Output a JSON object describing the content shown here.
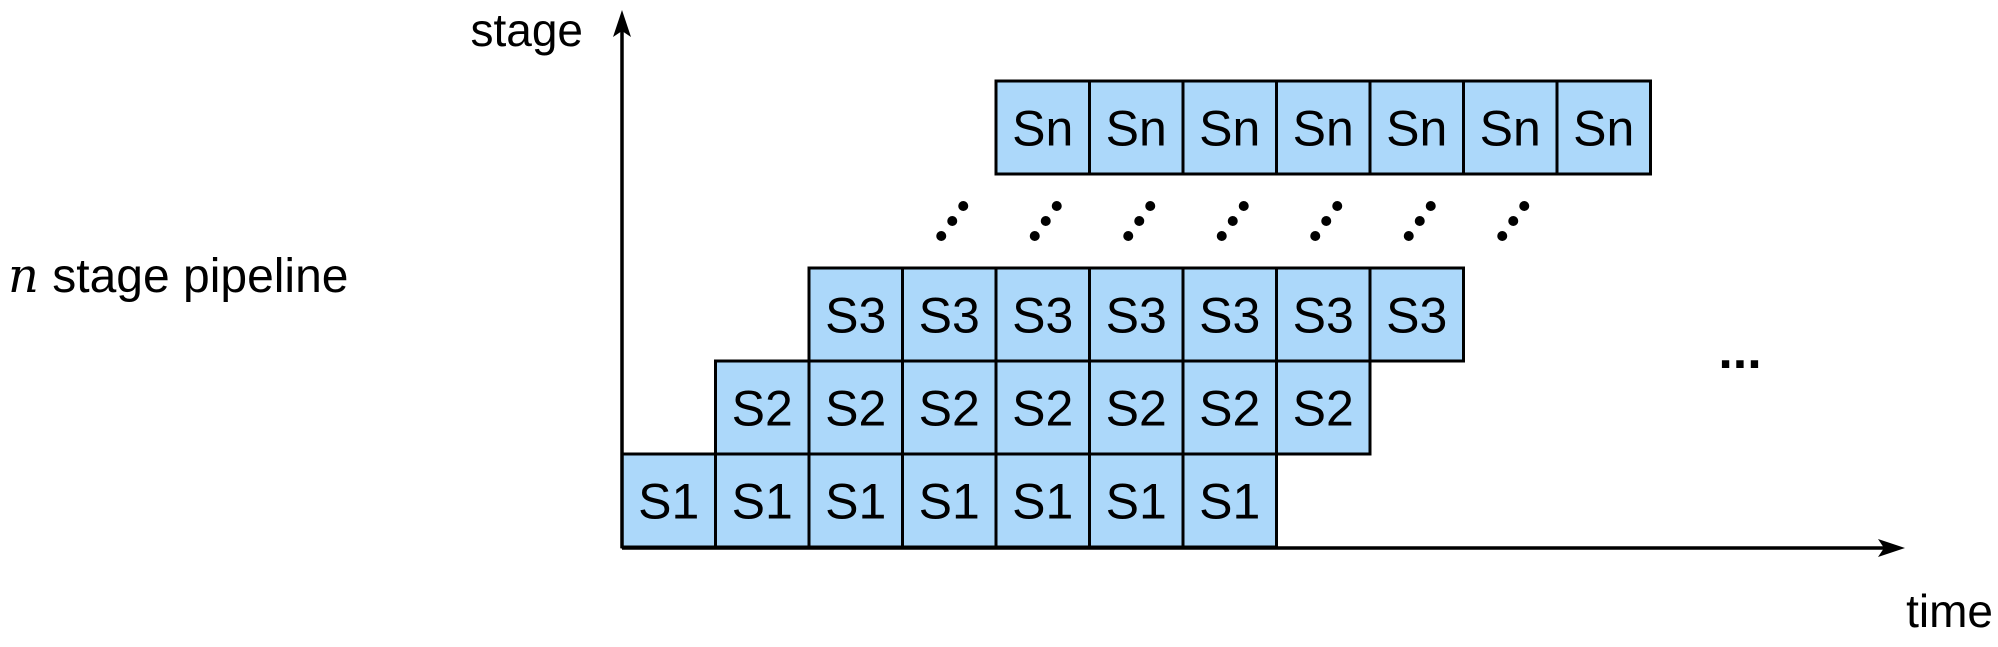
{
  "labels": {
    "y_axis": "stage",
    "x_axis": "time",
    "side_var": "n",
    "side_text": " stage pipeline",
    "continuation": "..."
  },
  "colors": {
    "cell_fill": "#acd8fa",
    "stroke": "#000000"
  },
  "rows": [
    {
      "label": "S1",
      "start_col": 0,
      "count": 7
    },
    {
      "label": "S2",
      "start_col": 1,
      "count": 7
    },
    {
      "label": "S3",
      "start_col": 2,
      "count": 7
    },
    {
      "label": "Sn",
      "start_col": 4,
      "count": 7
    }
  ],
  "dots_row": {
    "start_col": 3,
    "count": 7
  }
}
